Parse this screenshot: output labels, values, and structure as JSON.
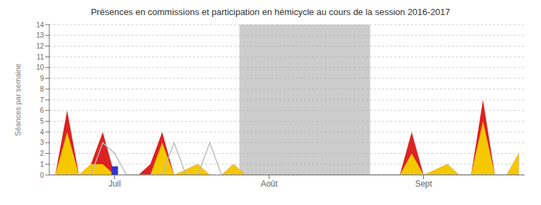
{
  "chart_data": {
    "type": "area",
    "title": "Présences en commissions et participation en hémicycle au cours de la session 2016-2017",
    "ylabel": "Séances par semaine",
    "x": [
      0,
      1,
      2,
      3,
      4,
      5,
      6,
      7,
      8,
      9,
      10,
      11,
      12,
      13,
      14,
      15,
      16,
      17,
      18,
      19,
      20,
      21,
      22,
      23,
      24,
      25,
      26,
      27,
      28,
      29,
      30,
      31,
      32,
      33,
      34,
      35,
      36,
      37,
      38,
      39
    ],
    "xlim": [
      -0.5,
      39.5
    ],
    "xticks": [
      {
        "value": 5,
        "label": "Juil"
      },
      {
        "value": 18,
        "label": "Août"
      },
      {
        "value": 31,
        "label": "Sept"
      }
    ],
    "ylim": [
      0,
      14
    ],
    "yticks": [
      0,
      1,
      2,
      3,
      4,
      5,
      6,
      7,
      8,
      9,
      10,
      11,
      12,
      13,
      14
    ],
    "grid": true,
    "spans": [
      {
        "x": [
          15.5,
          26.5
        ],
        "color": "#aaaaaa"
      }
    ],
    "series": [
      {
        "type": "area",
        "color": "#dd2222",
        "values": [
          0,
          6,
          0,
          1,
          4,
          0,
          0,
          0,
          1,
          4,
          0,
          0.5,
          1,
          0,
          0,
          1,
          0,
          0,
          0,
          0,
          0,
          0,
          0,
          0,
          0,
          0,
          0,
          0,
          0,
          0,
          4,
          0,
          0.5,
          1,
          0,
          0,
          7,
          0,
          0,
          2
        ]
      },
      {
        "type": "area",
        "color": "#f5c800",
        "values": [
          0,
          4,
          0,
          1,
          1,
          0,
          0,
          0,
          0,
          3,
          0,
          0.5,
          1,
          0,
          0,
          1,
          0,
          0,
          0,
          0,
          0,
          0,
          0,
          0,
          0,
          0,
          0,
          0,
          0,
          0,
          2,
          0,
          0.5,
          1,
          0,
          0,
          5,
          0,
          0,
          2
        ]
      },
      {
        "type": "line",
        "color": "#bbbbbb",
        "values": [
          0,
          0,
          0,
          0,
          3,
          2,
          0,
          0,
          0,
          0,
          3,
          0,
          0,
          3,
          0,
          0,
          0,
          0,
          0,
          0,
          0,
          0,
          0,
          0,
          0,
          0,
          0,
          0,
          0,
          0,
          0,
          0,
          0,
          0,
          0,
          0,
          0,
          0,
          0,
          0
        ]
      },
      {
        "type": "bar",
        "color": "#3333cc",
        "values": [
          null,
          null,
          null,
          null,
          null,
          0.8,
          null,
          null,
          null,
          null,
          null,
          null,
          null,
          null,
          null,
          null,
          null,
          null,
          null,
          null,
          null,
          null,
          null,
          null,
          null,
          null,
          null,
          null,
          null,
          null,
          null,
          null,
          null,
          null,
          null,
          null,
          null,
          null,
          null,
          null
        ]
      }
    ]
  }
}
